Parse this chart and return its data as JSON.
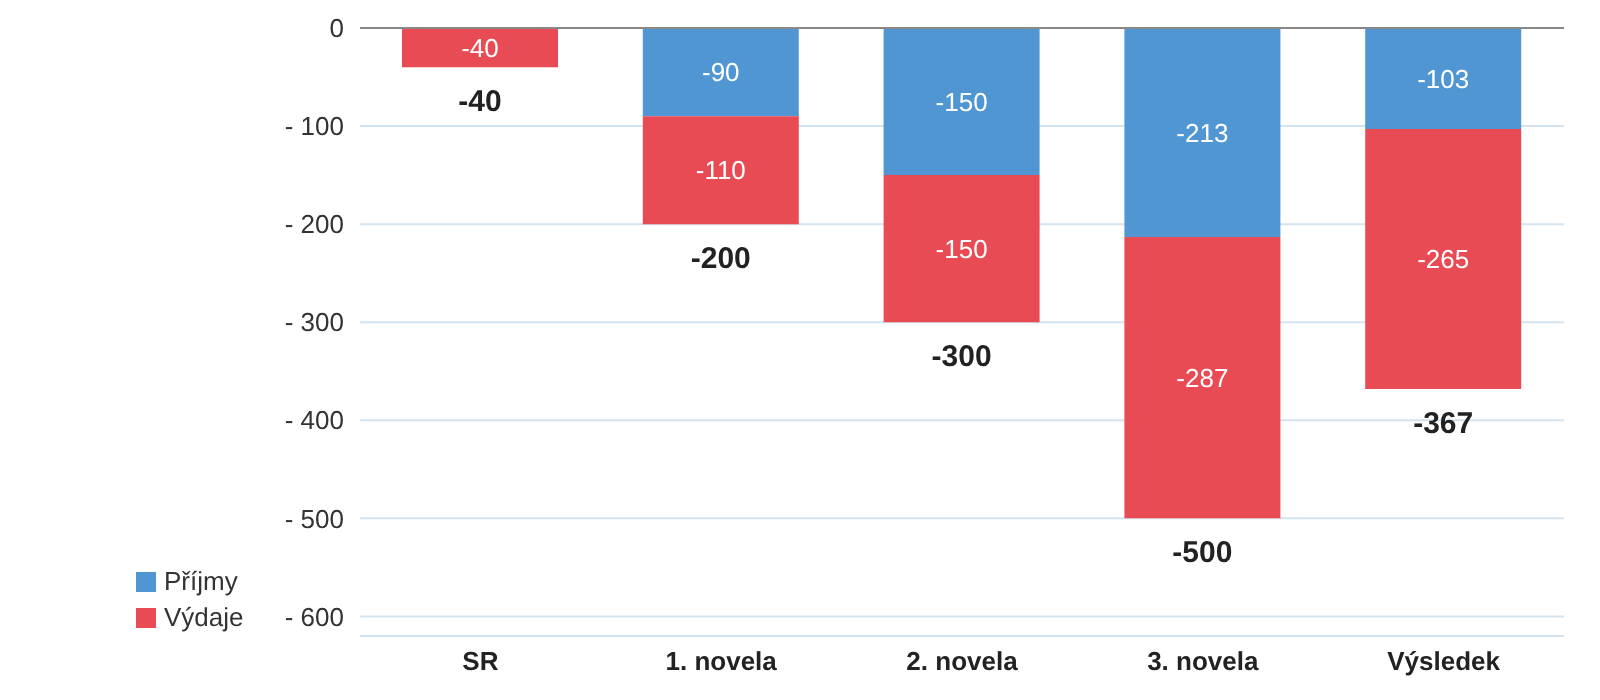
{
  "chart_data": {
    "type": "bar",
    "stacked": true,
    "categories": [
      "SR",
      "1. novela",
      "2. novela",
      "3. novela",
      "Výsledek"
    ],
    "series": [
      {
        "name": "Příjmy",
        "color": "#5096d3",
        "values": [
          null,
          -90,
          -150,
          -213,
          -103
        ]
      },
      {
        "name": "Výdaje",
        "color": "#e94b55",
        "values": [
          -40,
          -110,
          -150,
          -287,
          -265
        ]
      }
    ],
    "data_labels": true,
    "totals": [
      "-40",
      "-200",
      "-300",
      "-500",
      "-367"
    ],
    "ylim": [
      -620,
      0
    ],
    "yticks": [
      0,
      {
        "value": -100,
        "label": "- 100"
      },
      {
        "value": -200,
        "label": "- 200"
      },
      {
        "value": -300,
        "label": "- 300"
      },
      {
        "value": -400,
        "label": "- 400"
      },
      {
        "value": -500,
        "label": "- 500"
      },
      {
        "value": -600,
        "label": "- 600"
      }
    ],
    "grid": "y",
    "legend": "bottom left"
  }
}
